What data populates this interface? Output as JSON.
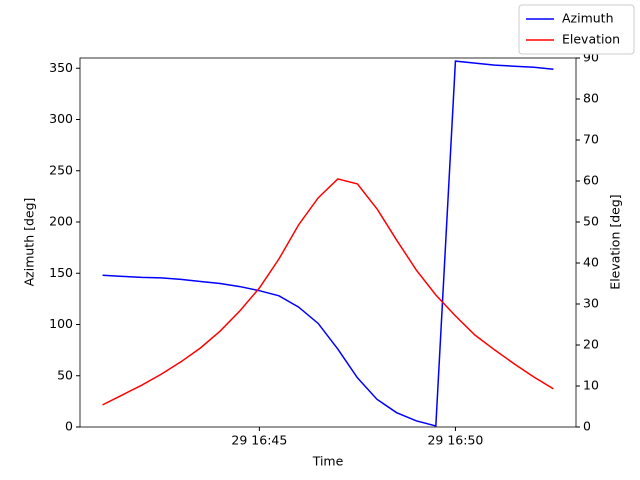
{
  "chart_data": {
    "type": "line",
    "x_label": "Time",
    "y_label": "Azimuth [deg]",
    "y2_label": "Elevation [deg]",
    "x": [
      41,
      41.5,
      42,
      42.5,
      43,
      43.5,
      44,
      44.5,
      45,
      45.5,
      46,
      46.5,
      47,
      47.5,
      48,
      48.5,
      49,
      49.5,
      50,
      50.5,
      51,
      51.5,
      52,
      52.5
    ],
    "series": [
      {
        "name": "Azimuth",
        "color": "#0000ff",
        "axis": "y",
        "values": [
          148,
          147,
          146,
          145.5,
          144,
          142,
          140,
          137,
          133,
          128,
          117,
          101,
          76,
          48,
          27,
          14,
          6,
          1,
          357,
          355,
          353,
          352,
          351,
          349
        ]
      },
      {
        "name": "Elevation",
        "color": "#ff0000",
        "axis": "y2",
        "values": [
          5.4,
          7.8,
          10.2,
          12.9,
          15.9,
          19.3,
          23.4,
          28.3,
          33.9,
          41,
          49.3,
          55.9,
          60.5,
          59.3,
          53.2,
          45.6,
          38.3,
          32.2,
          27.1,
          22.4,
          18.8,
          15.4,
          12.2,
          9.3
        ]
      }
    ],
    "xlim": [
      40.425,
      53.075
    ],
    "xticks": [
      {
        "value": 45,
        "label": "29 16:45"
      },
      {
        "value": 50,
        "label": "29 16:50"
      }
    ],
    "ylim": [
      0,
      360
    ],
    "yticks": [
      0,
      50,
      100,
      150,
      200,
      250,
      300,
      350
    ],
    "y2lim": [
      0,
      90
    ],
    "y2ticks": [
      0,
      10,
      20,
      30,
      40,
      50,
      60,
      70,
      80,
      90
    ],
    "grid": false,
    "legend": "upper-right"
  }
}
